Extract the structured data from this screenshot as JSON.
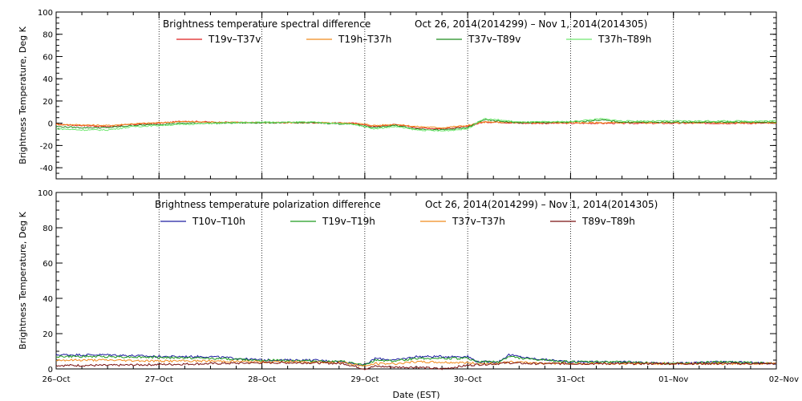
{
  "chart_data": [
    {
      "type": "line",
      "title": "Brightness temperature spectral difference",
      "period": "Oct 26, 2014(2014299) – Nov  1, 2014(2014305)",
      "ylabel": "Brightness Temperature, Deg K",
      "xlabel": "",
      "ylim": [
        -50,
        100
      ],
      "yticks": [
        -40,
        -20,
        0,
        20,
        40,
        60,
        80,
        100
      ],
      "xlim": [
        0,
        7
      ],
      "xticks": [
        0,
        1,
        2,
        3,
        4,
        5,
        6,
        7
      ],
      "xtick_labels": [],
      "grid": true,
      "legend_position": "top",
      "series": [
        {
          "name": "T19v–T37v",
          "color": "#dd1f1f",
          "x": [
            0,
            0.25,
            0.5,
            0.75,
            1,
            1.25,
            1.5,
            2,
            2.5,
            2.9,
            3.1,
            3.3,
            3.5,
            3.75,
            4,
            4.15,
            4.3,
            4.5,
            5,
            5.5,
            6,
            6.5,
            7
          ],
          "y": [
            -1,
            -2,
            -3,
            -1,
            0,
            2,
            1,
            0.5,
            0.5,
            0,
            -3,
            -1,
            -4,
            -5,
            -3,
            1,
            1,
            0,
            0,
            0,
            0,
            0,
            0
          ]
        },
        {
          "name": "T19h–T37h",
          "color": "#f08a1c",
          "x": [
            0,
            0.25,
            0.5,
            0.75,
            1,
            1.25,
            1.5,
            2,
            2.5,
            2.9,
            3.1,
            3.3,
            3.5,
            3.75,
            4,
            4.15,
            4.3,
            4.5,
            5,
            5.5,
            6,
            6.5,
            7
          ],
          "y": [
            -1,
            -1.5,
            -2,
            -0.5,
            0.5,
            1.5,
            1,
            0.5,
            0.5,
            0,
            -2,
            -1,
            -3,
            -4,
            -2,
            1,
            1,
            0.5,
            0.5,
            0.5,
            0.5,
            0.5,
            0.5
          ]
        },
        {
          "name": "T37v–T89v",
          "color": "#1e8c1e",
          "x": [
            0,
            0.25,
            0.5,
            0.75,
            1,
            1.25,
            1.5,
            2,
            2.5,
            2.9,
            3.1,
            3.3,
            3.5,
            3.75,
            4,
            4.15,
            4.3,
            4.5,
            5,
            5.3,
            5.5,
            6,
            6.5,
            7
          ],
          "y": [
            -3,
            -4,
            -4,
            -2,
            -1,
            0,
            0,
            0.5,
            0.5,
            -1,
            -4,
            -2,
            -5,
            -6,
            -4,
            3,
            2,
            0.5,
            1,
            3,
            1,
            1,
            1,
            1
          ]
        },
        {
          "name": "T37h–T89h",
          "color": "#6fe86f",
          "x": [
            0,
            0.25,
            0.5,
            0.75,
            1,
            1.25,
            1.5,
            2,
            2.5,
            2.9,
            3.1,
            3.3,
            3.5,
            3.75,
            4,
            4.15,
            4.3,
            4.5,
            5,
            5.3,
            5.5,
            6,
            6.5,
            7
          ],
          "y": [
            -5,
            -6,
            -6,
            -3,
            -2,
            -1,
            0,
            1,
            1,
            -1,
            -5,
            -3,
            -6,
            -7,
            -5,
            4,
            3,
            1,
            1.5,
            4,
            2,
            2,
            2,
            2
          ]
        }
      ]
    },
    {
      "type": "line",
      "title": "Brightness temperature polarization difference",
      "period": "Oct 26, 2014(2014299) – Nov  1, 2014(2014305)",
      "ylabel": "Brightness Temperature, Deg K",
      "xlabel": "Date (EST)",
      "ylim": [
        0,
        100
      ],
      "yticks": [
        0,
        20,
        40,
        60,
        80,
        100
      ],
      "xlim": [
        0,
        7
      ],
      "xticks": [
        0,
        1,
        2,
        3,
        4,
        5,
        6,
        7
      ],
      "xtick_labels": [
        "26–Oct",
        "27–Oct",
        "28–Oct",
        "29–Oct",
        "30–Oct",
        "31–Oct",
        "01–Nov",
        "02–Nov"
      ],
      "grid": true,
      "legend_position": "top",
      "series": [
        {
          "name": "T10v–T10h",
          "color": "#1f1fa0",
          "x": [
            0,
            0.5,
            1,
            1.5,
            2,
            2.5,
            2.8,
            3.0,
            3.1,
            3.3,
            3.5,
            4,
            4.1,
            4.3,
            4.4,
            4.6,
            5,
            5.5,
            6,
            6.5,
            7
          ],
          "y": [
            8,
            8,
            7,
            7,
            5,
            5,
            4,
            2,
            6,
            5,
            7,
            7,
            4,
            4,
            8,
            6,
            4,
            4,
            3,
            4,
            3
          ]
        },
        {
          "name": "T19v–T19h",
          "color": "#1e9a1e",
          "x": [
            0,
            0.5,
            1,
            1.5,
            2,
            2.5,
            2.8,
            3.0,
            3.1,
            3.3,
            3.5,
            4,
            4.1,
            4.3,
            4.4,
            4.6,
            5,
            5.5,
            6,
            6.5,
            7
          ],
          "y": [
            7,
            7,
            6.5,
            6,
            5,
            4.5,
            4,
            2,
            5,
            4.5,
            6,
            6,
            4,
            4,
            7,
            5.5,
            4,
            4,
            3,
            4,
            3
          ]
        },
        {
          "name": "T37v–T37h",
          "color": "#f08a1c",
          "x": [
            0,
            0.5,
            1,
            1.5,
            2,
            2.5,
            2.8,
            3.0,
            3.1,
            3.3,
            3.5,
            4,
            4.1,
            4.3,
            4.4,
            4.6,
            5,
            5.5,
            6,
            6.5,
            7
          ],
          "y": [
            5,
            5,
            4.5,
            4.5,
            4,
            4,
            3.5,
            1.5,
            3,
            3,
            4,
            3.5,
            3,
            3,
            4,
            3.5,
            3,
            3,
            3,
            3,
            3
          ]
        },
        {
          "name": "T89v–T89h",
          "color": "#7a1010",
          "x": [
            0,
            0.5,
            1,
            1.5,
            2,
            2.5,
            2.8,
            3.0,
            3.1,
            3.3,
            3.5,
            3.75,
            4,
            4.1,
            4.3,
            4.4,
            4.6,
            5,
            5.5,
            6,
            6.5,
            7
          ],
          "y": [
            2,
            2,
            2.5,
            3,
            3.5,
            3.5,
            3,
            0,
            1.5,
            1,
            1,
            0,
            2,
            2.5,
            3,
            3.5,
            3,
            3,
            3,
            3,
            3,
            3
          ]
        }
      ]
    }
  ]
}
